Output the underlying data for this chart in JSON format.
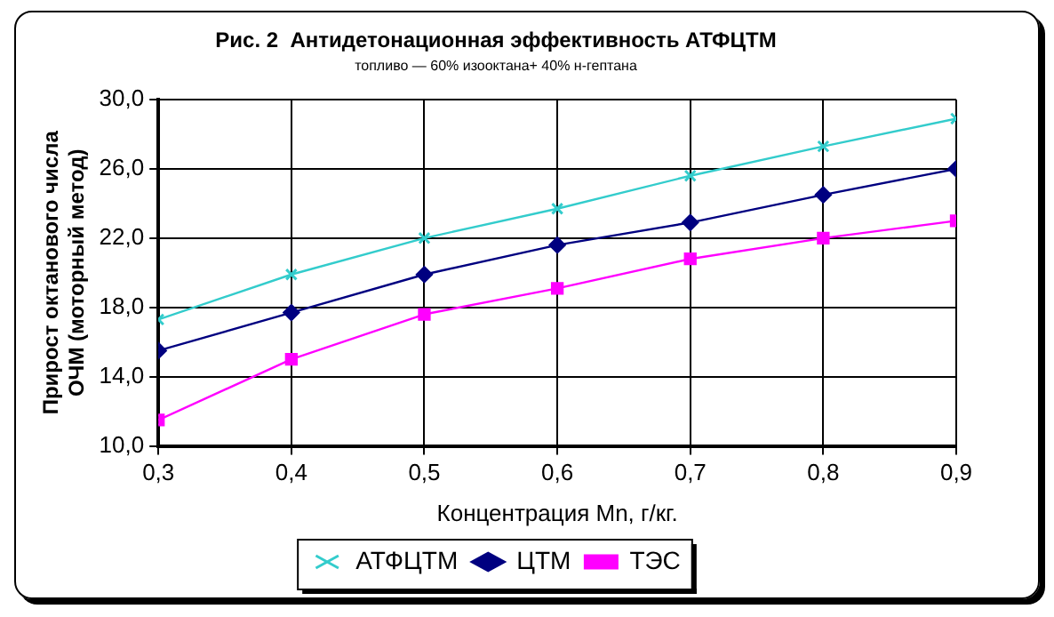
{
  "chart_data": {
    "type": "line",
    "title": "Рис. 2  Антидетонационная эффективность АТФЦТМ",
    "subtitle": "топливо — 60% изооктана+ 40% н-гептана",
    "xlabel": "Концентрация Mn, г/кг.",
    "ylabel": "Прирост октанового числа ОЧМ (моторный метод)",
    "x": [
      0.3,
      0.4,
      0.5,
      0.6,
      0.7,
      0.8,
      0.9
    ],
    "xlim": [
      0.3,
      0.9
    ],
    "xticks": [
      {
        "value": 0.3,
        "label": "0,3"
      },
      {
        "value": 0.4,
        "label": "0,4"
      },
      {
        "value": 0.5,
        "label": "0,5"
      },
      {
        "value": 0.6,
        "label": "0,6"
      },
      {
        "value": 0.7,
        "label": "0,7"
      },
      {
        "value": 0.8,
        "label": "0,8"
      },
      {
        "value": 0.9,
        "label": "0,9"
      }
    ],
    "ylim": [
      10,
      30
    ],
    "yticks": [
      {
        "value": 10,
        "label": "10,0"
      },
      {
        "value": 14,
        "label": "14,0"
      },
      {
        "value": 18,
        "label": "18,0"
      },
      {
        "value": 22,
        "label": "22,0"
      },
      {
        "value": 26,
        "label": "26,0"
      },
      {
        "value": 30,
        "label": "30,0"
      }
    ],
    "series": [
      {
        "name": "АТФЦТМ",
        "color": "#33cccc",
        "marker": "cross",
        "values": [
          17.3,
          19.9,
          22.0,
          23.7,
          25.6,
          27.3,
          28.9
        ]
      },
      {
        "name": "ЦТМ",
        "color": "#000080",
        "marker": "diamond",
        "values": [
          15.5,
          17.7,
          19.9,
          21.6,
          22.9,
          24.5,
          26.0
        ]
      },
      {
        "name": "ТЭС",
        "color": "#ff00ff",
        "marker": "square",
        "values": [
          11.5,
          15.0,
          17.6,
          19.1,
          20.8,
          22.0,
          23.0
        ]
      }
    ],
    "grid": true,
    "legend": "bottom",
    "line_style": "solid"
  }
}
